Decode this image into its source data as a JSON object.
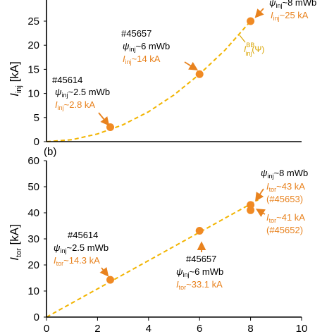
{
  "colors": {
    "point": "#f08a24",
    "fit": "#f2b400",
    "arrow": "#e8821e",
    "axis": "#000000"
  },
  "chart_data": [
    {
      "type": "scatter",
      "panel": "a",
      "ylabel": "I_inj [kA]",
      "ylabel_main": "I",
      "ylabel_sub": "inj",
      "ylabel_unit": " [kA]",
      "xlim": [
        0,
        10
      ],
      "ylim": [
        0,
        25
      ],
      "y_ticks": [
        "0",
        "5",
        "10",
        "15",
        "20",
        "25"
      ],
      "points": [
        {
          "x": 2.5,
          "y": 3
        },
        {
          "x": 6,
          "y": 14
        },
        {
          "x": 8,
          "y": 25
        }
      ],
      "fit": {
        "label": "I_inj^BB(Ψ)",
        "x": [
          0,
          1,
          2,
          3,
          4,
          5,
          6,
          7,
          8
        ],
        "y": [
          0,
          0.4,
          1.6,
          3.5,
          6.2,
          9.7,
          14,
          19,
          25
        ]
      },
      "annotations": [
        {
          "shot": "#45614",
          "psi": "ψ",
          "psi_sub": "inj",
          "psi_val": "~2.5 mWb",
          "cur": "I",
          "cur_sub": "inj",
          "cur_val": "~2.8 kA"
        },
        {
          "shot": "#45657",
          "psi": "ψ",
          "psi_sub": "inj",
          "psi_val": "~6 mWb",
          "cur": "I",
          "cur_sub": "inj",
          "cur_val": "~14 kA"
        },
        {
          "shot": "",
          "psi": "ψ",
          "psi_sub": "inj",
          "psi_val": "~8 mWb",
          "cur": "I",
          "cur_sub": "inj",
          "cur_val": "~25 kA"
        }
      ],
      "fit_label": {
        "main": "I",
        "sup": "BB",
        "sub": "inj",
        "arg": "(Ψ)"
      }
    },
    {
      "type": "scatter",
      "panel": "b",
      "panel_label": "(b)",
      "ylabel": "I_tor [kA]",
      "ylabel_main": "I",
      "ylabel_sub": "tor",
      "ylabel_unit": " [kA]",
      "xlim": [
        0,
        10
      ],
      "ylim": [
        0,
        60
      ],
      "x_ticks": [
        "0",
        "2",
        "4",
        "6",
        "8",
        "10"
      ],
      "y_ticks": [
        "0",
        "10",
        "20",
        "30",
        "40",
        "50",
        "60"
      ],
      "points": [
        {
          "x": 2.5,
          "y": 14.3
        },
        {
          "x": 6,
          "y": 33.1
        },
        {
          "x": 8,
          "y": 43
        },
        {
          "x": 8,
          "y": 41
        }
      ],
      "fit": {
        "x": [
          0,
          8.3
        ],
        "y": [
          0,
          45
        ]
      },
      "annotations": [
        {
          "shot": "#45614",
          "psi": "ψ",
          "psi_sub": "inj",
          "psi_val": "~2.5 mWb",
          "cur": "I",
          "cur_sub": "tor",
          "cur_val": "~14.3 kA"
        },
        {
          "shot": "#45657",
          "psi": "ψ",
          "psi_sub": "inj",
          "psi_val": "~6 mWb",
          "cur": "I",
          "cur_sub": "tor",
          "cur_val": "~33.1 kA"
        },
        {
          "shot": "",
          "psi": "ψ",
          "psi_sub": "inj",
          "psi_val": "~8 mWb",
          "cur": "",
          "cur_sub": "",
          "cur_val": ""
        },
        {
          "cur": "I",
          "cur_sub": "tor",
          "cur_val": "~43 kA",
          "shot_paren": "(#45653)"
        },
        {
          "cur": "I",
          "cur_sub": "tor",
          "cur_val": "~41 kA",
          "shot_paren": "(#45652)"
        }
      ]
    }
  ]
}
